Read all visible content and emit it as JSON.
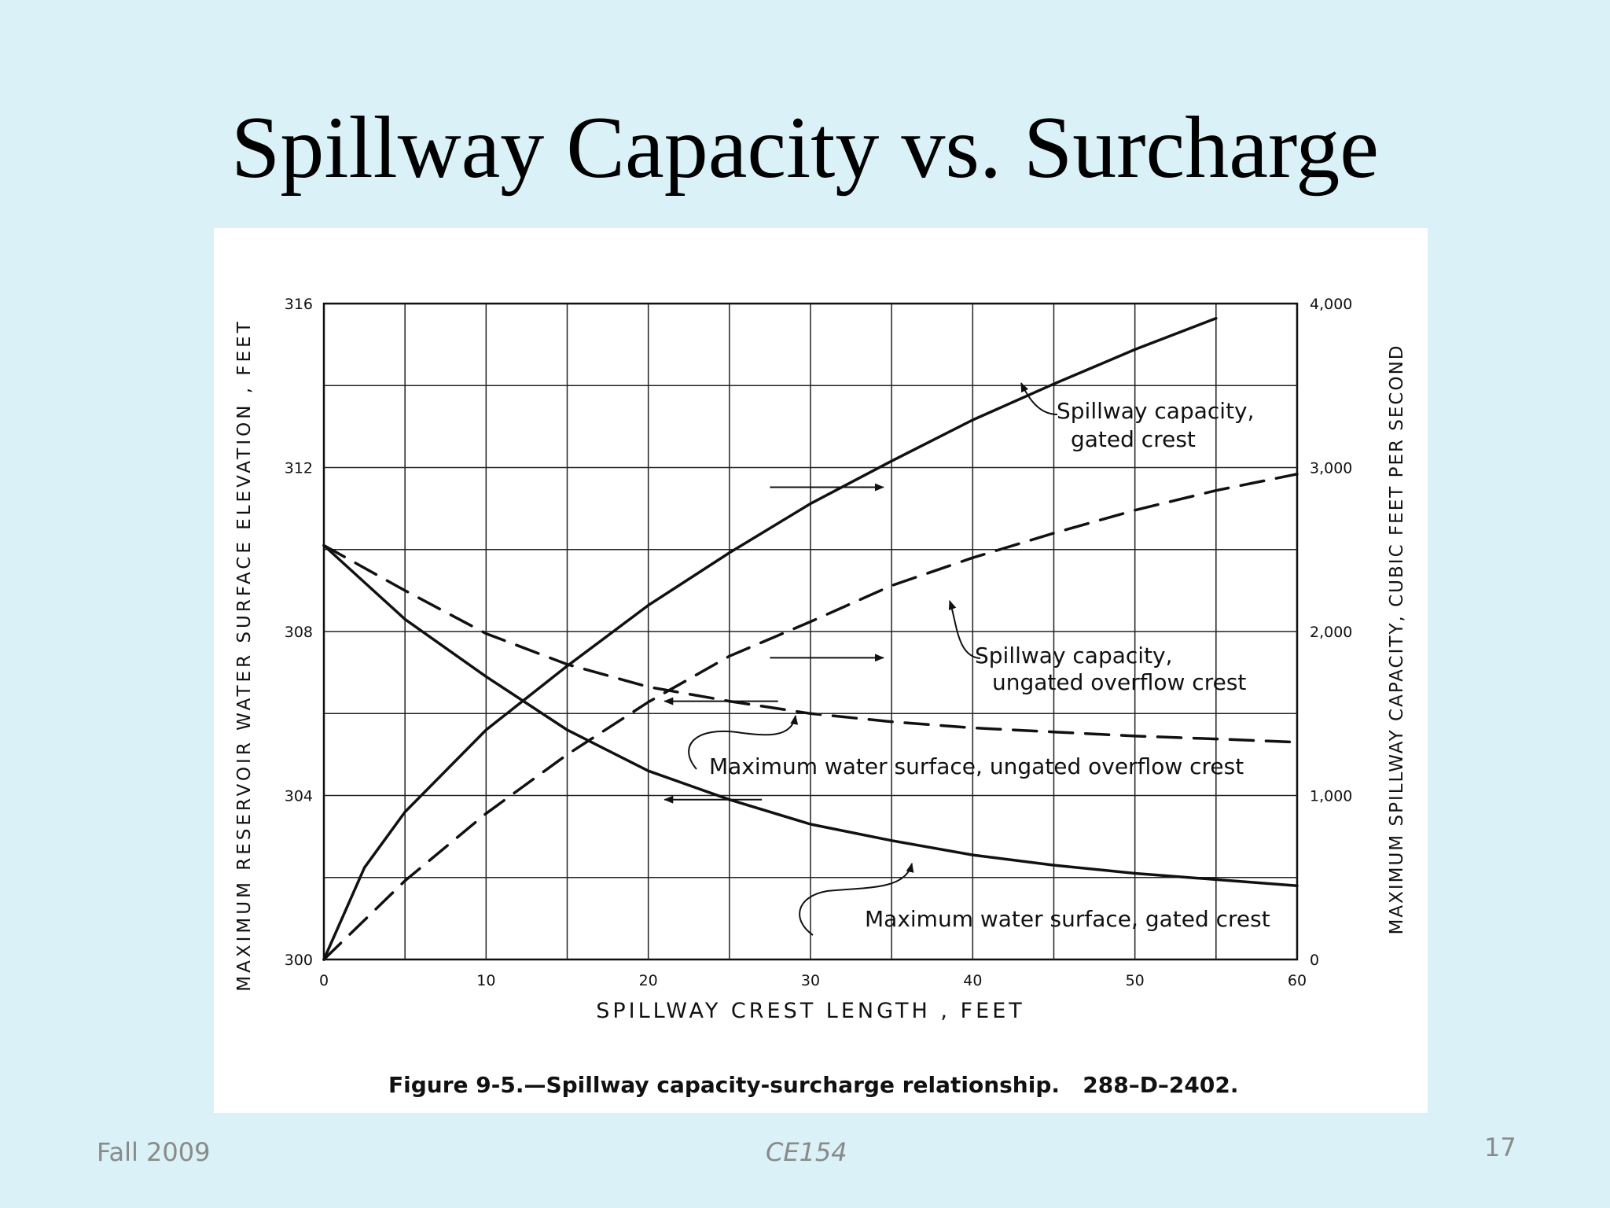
{
  "slide": {
    "title": "Spillway Capacity vs. Surcharge",
    "footer_left": "Fall 2009",
    "footer_center": "CE154",
    "page_number": "17"
  },
  "chart_data": {
    "type": "line",
    "caption": "Figure 9-5.—Spillway capacity-surcharge relationship.   288–D–2402.",
    "xlabel": "SPILLWAY CREST LENGTH , FEET",
    "ylabel_left": "MAXIMUM RESERVOIR WATER SURFACE ELEVATION , FEET",
    "ylabel_right": "MAXIMUM SPILLWAY CAPACITY, CUBIC FEET PER SECOND",
    "xlim": [
      0,
      60
    ],
    "ylim_left": [
      300,
      316
    ],
    "ylim_right": [
      0,
      4000
    ],
    "x_ticks": [
      "0",
      "10",
      "20",
      "30",
      "40",
      "50",
      "60"
    ],
    "y_left_ticks": [
      "300",
      "304",
      "308",
      "312",
      "316"
    ],
    "y_right_ticks": [
      "0",
      "1,000",
      "2,000",
      "3,000",
      "4,000"
    ],
    "grid": true,
    "colors": {
      "ink": "#111111",
      "grid": "#222222",
      "panel": "#ffffff",
      "background": "#d9f1f7"
    },
    "series": [
      {
        "axis": "right",
        "style": "solid",
        "x": [
          0,
          2.5,
          5,
          10,
          15,
          20,
          25,
          30,
          35,
          40,
          45,
          50,
          55
        ],
        "y": [
          0,
          560,
          900,
          1400,
          1790,
          2160,
          2480,
          2780,
          3040,
          3290,
          3510,
          3720,
          3910
        ]
      },
      {
        "axis": "right",
        "style": "dashed",
        "x": [
          0,
          5,
          10,
          15,
          20,
          25,
          30,
          35,
          40,
          45,
          50,
          55,
          60
        ],
        "y": [
          0,
          480,
          890,
          1250,
          1570,
          1850,
          2060,
          2280,
          2450,
          2600,
          2740,
          2860,
          2960
        ]
      },
      {
        "axis": "left",
        "style": "solid",
        "x": [
          0,
          2.5,
          5,
          10,
          15,
          20,
          25,
          30,
          35,
          40,
          45,
          50,
          55,
          60
        ],
        "y": [
          310.1,
          309.2,
          308.3,
          306.9,
          305.6,
          304.6,
          303.9,
          303.3,
          302.9,
          302.55,
          302.3,
          302.1,
          301.95,
          301.8
        ]
      },
      {
        "axis": "left",
        "style": "dashed",
        "x": [
          0,
          5,
          10,
          15,
          20,
          25,
          30,
          35,
          40,
          45,
          50,
          55,
          60
        ],
        "y": [
          310.1,
          309.0,
          307.95,
          307.2,
          306.65,
          306.3,
          306.0,
          305.8,
          305.65,
          305.55,
          305.45,
          305.38,
          305.3
        ]
      }
    ],
    "annotations": [
      {
        "lines": [
          "Spillway capacity,",
          "gated crest"
        ]
      },
      {
        "lines": [
          "Spillway capacity,",
          "ungated overflow crest"
        ]
      },
      {
        "lines": [
          "Maximum water surface, ungated overflow crest"
        ]
      },
      {
        "lines": [
          "Maximum water surface, gated crest"
        ]
      }
    ]
  }
}
